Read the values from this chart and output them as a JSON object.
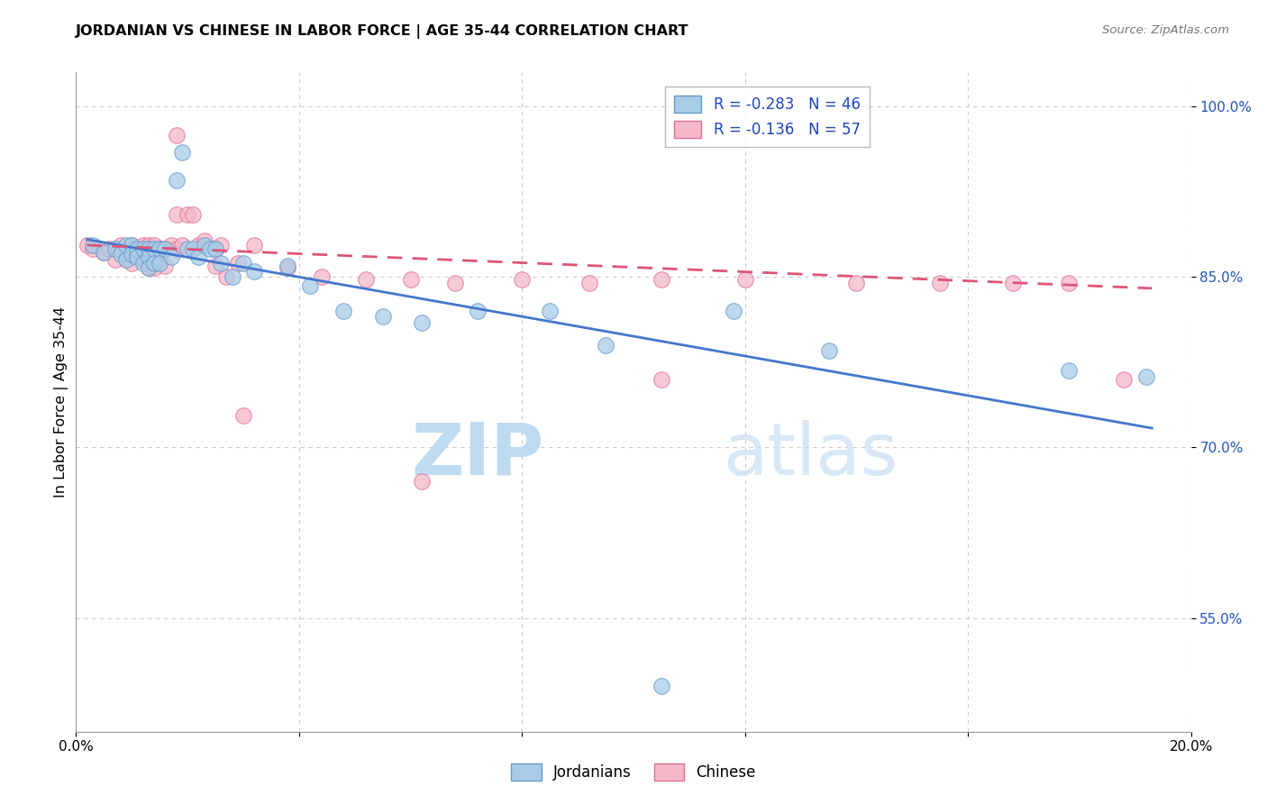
{
  "title": "JORDANIAN VS CHINESE IN LABOR FORCE | AGE 35-44 CORRELATION CHART",
  "source": "Source: ZipAtlas.com",
  "ylabel": "In Labor Force | Age 35-44",
  "xlim": [
    0.0,
    0.2
  ],
  "ylim": [
    0.45,
    1.03
  ],
  "yticks": [
    0.55,
    0.7,
    0.85,
    1.0
  ],
  "ytick_labels": [
    "55.0%",
    "70.0%",
    "85.0%",
    "100.0%"
  ],
  "xticks": [
    0.0,
    0.04,
    0.08,
    0.12,
    0.16,
    0.2
  ],
  "xtick_labels": [
    "0.0%",
    "",
    "",
    "",
    "",
    "20.0%"
  ],
  "watermark_zip": "ZIP",
  "watermark_atlas": "atlas",
  "legend_r_blue": "R = -0.283",
  "legend_n_blue": "N = 46",
  "legend_r_pink": "R = -0.136",
  "legend_n_pink": "N = 57",
  "blue_fill": "#a8cce8",
  "pink_fill": "#f5b8c8",
  "blue_edge": "#6699cc",
  "pink_edge": "#e07090",
  "blue_line_color": "#4477cc",
  "pink_line_color": "#dd5577",
  "background_color": "#ffffff",
  "grid_color": "#cccccc",
  "blue_line_x0": 0.002,
  "blue_line_y0": 0.883,
  "blue_line_x1": 0.193,
  "blue_line_y1": 0.717,
  "pink_line_x0": 0.002,
  "pink_line_y0": 0.878,
  "pink_line_x1": 0.193,
  "pink_line_y1": 0.84,
  "blue_scatter_x": [
    0.003,
    0.005,
    0.007,
    0.008,
    0.009,
    0.009,
    0.01,
    0.01,
    0.011,
    0.011,
    0.012,
    0.012,
    0.013,
    0.013,
    0.013,
    0.014,
    0.014,
    0.015,
    0.015,
    0.016,
    0.017,
    0.018,
    0.019,
    0.02,
    0.021,
    0.022,
    0.023,
    0.024,
    0.025,
    0.026,
    0.028,
    0.03,
    0.032,
    0.038,
    0.042,
    0.048,
    0.055,
    0.062,
    0.072,
    0.085,
    0.095,
    0.105,
    0.118,
    0.135,
    0.178,
    0.192
  ],
  "blue_scatter_y": [
    0.878,
    0.872,
    0.875,
    0.87,
    0.878,
    0.865,
    0.878,
    0.87,
    0.875,
    0.868,
    0.875,
    0.862,
    0.875,
    0.868,
    0.858,
    0.875,
    0.862,
    0.875,
    0.862,
    0.875,
    0.868,
    0.935,
    0.96,
    0.875,
    0.875,
    0.868,
    0.878,
    0.875,
    0.875,
    0.862,
    0.85,
    0.862,
    0.855,
    0.86,
    0.842,
    0.82,
    0.815,
    0.81,
    0.82,
    0.82,
    0.79,
    0.49,
    0.82,
    0.785,
    0.768,
    0.762
  ],
  "pink_scatter_x": [
    0.002,
    0.003,
    0.005,
    0.006,
    0.007,
    0.007,
    0.008,
    0.009,
    0.009,
    0.01,
    0.01,
    0.011,
    0.011,
    0.012,
    0.012,
    0.013,
    0.013,
    0.014,
    0.014,
    0.015,
    0.015,
    0.016,
    0.016,
    0.017,
    0.018,
    0.018,
    0.019,
    0.02,
    0.021,
    0.022,
    0.023,
    0.025,
    0.026,
    0.027,
    0.029,
    0.032,
    0.038,
    0.044,
    0.052,
    0.06,
    0.068,
    0.08,
    0.092,
    0.105,
    0.12,
    0.14,
    0.155,
    0.168,
    0.178,
    0.188,
    0.025,
    0.018,
    0.03,
    0.105,
    0.062,
    0.014,
    0.01
  ],
  "pink_scatter_y": [
    0.878,
    0.875,
    0.872,
    0.875,
    0.875,
    0.865,
    0.878,
    0.875,
    0.865,
    0.878,
    0.87,
    0.875,
    0.868,
    0.878,
    0.865,
    0.878,
    0.858,
    0.878,
    0.858,
    0.875,
    0.865,
    0.875,
    0.86,
    0.878,
    0.875,
    0.905,
    0.878,
    0.905,
    0.905,
    0.878,
    0.882,
    0.875,
    0.878,
    0.85,
    0.862,
    0.878,
    0.858,
    0.85,
    0.848,
    0.848,
    0.845,
    0.848,
    0.845,
    0.76,
    0.848,
    0.845,
    0.845,
    0.845,
    0.845,
    0.76,
    0.86,
    0.975,
    0.728,
    0.848,
    0.67,
    0.862,
    0.862
  ]
}
